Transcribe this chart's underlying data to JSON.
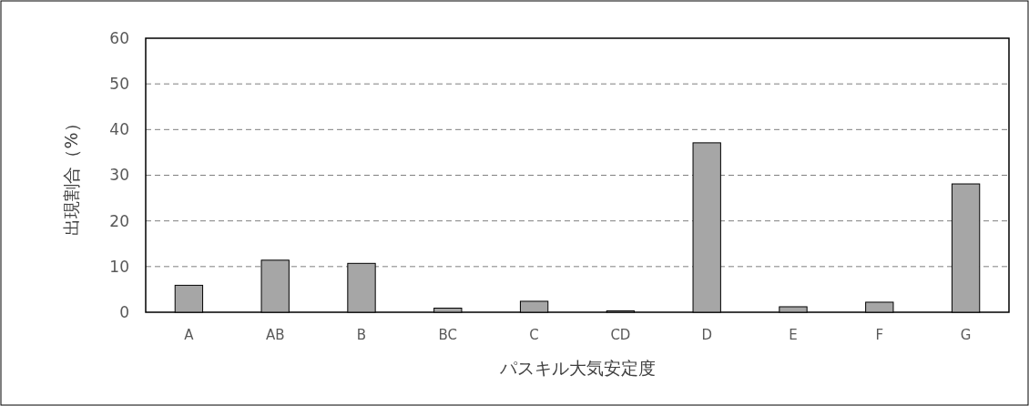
{
  "chart_data": {
    "type": "bar",
    "xlabel": "パスキル大気安定度",
    "ylabel": "出現割合（%）",
    "categories": [
      "A",
      "AB",
      "B",
      "BC",
      "C",
      "CD",
      "D",
      "E",
      "F",
      "G"
    ],
    "values": [
      5.9,
      11.4,
      10.7,
      0.9,
      2.4,
      0.3,
      37.1,
      1.2,
      2.2,
      28.1
    ],
    "color": "#a6a6a6",
    "ylim": [
      0,
      60
    ],
    "yticks": [
      0,
      10,
      20,
      30,
      40,
      50,
      60
    ],
    "grid": "y"
  }
}
